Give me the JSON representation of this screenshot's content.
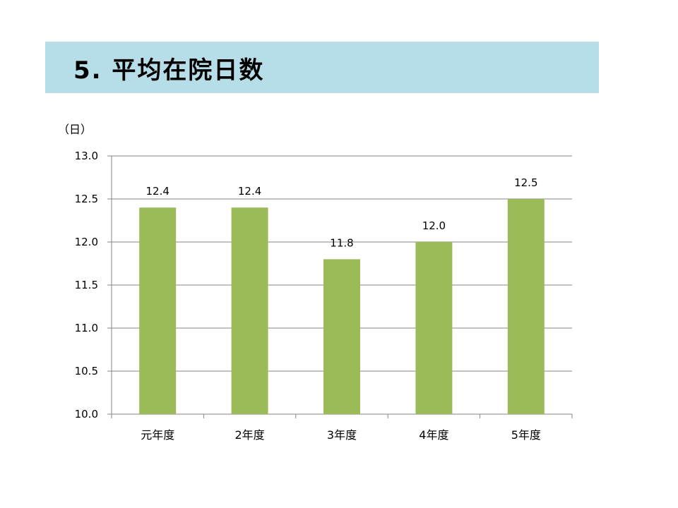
{
  "header": {
    "title": "5. 平均在院日数"
  },
  "chart_data": {
    "type": "bar",
    "title": "",
    "xlabel": "",
    "ylabel": "",
    "y_unit_label": "（日）",
    "categories": [
      "元年度",
      "2年度",
      "3年度",
      "4年度",
      "5年度"
    ],
    "values": [
      12.4,
      12.4,
      11.8,
      12.0,
      12.5
    ],
    "data_labels": [
      "12.4",
      "12.4",
      "11.8",
      "12.0",
      "12.5"
    ],
    "ylim": [
      10.0,
      13.0
    ],
    "yticks": [
      "10.0",
      "10.5",
      "11.0",
      "11.5",
      "12.0",
      "12.5",
      "13.0"
    ],
    "grid": true,
    "legend": "none",
    "bar_color": "#9bbb59",
    "grid_color": "#868686",
    "banner_color": "#b7dde8"
  }
}
